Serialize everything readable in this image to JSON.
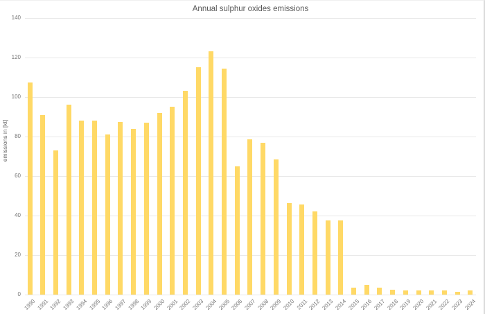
{
  "chart_data": {
    "type": "bar",
    "title": "Annual sulphur oxides emissions",
    "xlabel": "",
    "ylabel": "emissions in [kt]",
    "categories": [
      "1990",
      "1991",
      "1992",
      "1993",
      "1994",
      "1995",
      "1996",
      "1997",
      "1998",
      "1999",
      "2000",
      "2001",
      "2002",
      "2003",
      "2004",
      "2005",
      "2006",
      "2007",
      "2008",
      "2009",
      "2010",
      "2011",
      "2012",
      "2013",
      "2014",
      "2015",
      "2016",
      "2017",
      "2018",
      "2019",
      "2020",
      "2021",
      "2022",
      "2023",
      "2024"
    ],
    "values": [
      107.5,
      91,
      73,
      96,
      88,
      88,
      81,
      87.5,
      84,
      87,
      92,
      95,
      103,
      115,
      123,
      114.5,
      65,
      78.5,
      77,
      68.5,
      46.5,
      45.5,
      42,
      37.5,
      37.5,
      3.5,
      5,
      3.5,
      2.5,
      2,
      2,
      2,
      2,
      1.5,
      2
    ],
    "ylim": [
      0,
      140
    ],
    "ytick_step": 20,
    "yticks": [
      0,
      20,
      40,
      60,
      80,
      100,
      120,
      140
    ],
    "grid": true,
    "legend": "none",
    "colors": {
      "bar": "#FFD966",
      "gridline": "#E8E8E8",
      "title": "#595959",
      "tick": "#757575",
      "axis_title": "#666666",
      "border": "#DBDBDB"
    }
  }
}
